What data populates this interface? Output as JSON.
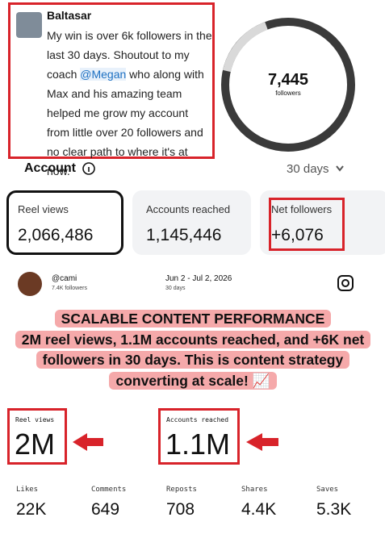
{
  "post": {
    "author": "Baltasar",
    "text_before": "My win is over 6k followers in the last 30 days. Shoutout to my coach ",
    "mention": "@Megan",
    "text_after": " who along with Max and his amazing team helped me grow my account from little over 20 followers and no clear path to where it's at now."
  },
  "followers_ring": {
    "value": "7,445",
    "label": "followers"
  },
  "account": {
    "title": "Account",
    "period": "30 days"
  },
  "cards": [
    {
      "label": "Reel views",
      "value": "2,066,486"
    },
    {
      "label": "Accounts reached",
      "value": "1,145,446"
    },
    {
      "label": "Net followers",
      "value": "+6,076"
    }
  ],
  "profile": {
    "handle": "@cami",
    "followers": "7.4K followers",
    "date_range": "Jun 2 - Jul 2, 2026",
    "period": "30 days"
  },
  "banner": {
    "title": "SCALABLE CONTENT PERFORMANCE",
    "text": "2M reel views, 1.1M accounts reached, and +6K net followers in 30 days. This is content strategy converting at scale! 📈"
  },
  "highlights": [
    {
      "label": "Reel views",
      "value": "2M"
    },
    {
      "label": "Accounts reached",
      "value": "1.1M"
    }
  ],
  "stats": [
    {
      "label": "Likes",
      "value": "22K"
    },
    {
      "label": "Comments",
      "value": "649"
    },
    {
      "label": "Reposts",
      "value": "708"
    },
    {
      "label": "Shares",
      "value": "4.4K"
    },
    {
      "label": "Saves",
      "value": "5.3K"
    }
  ]
}
